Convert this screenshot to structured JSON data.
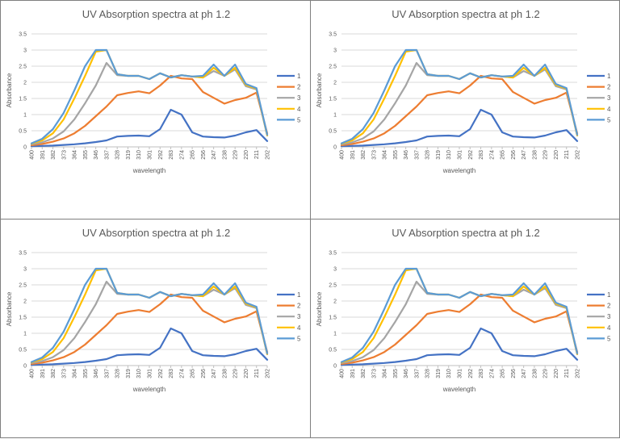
{
  "chart_data": [
    {
      "type": "line",
      "title": "UV Absorption spectra at ph 1.2",
      "xlabel": "wavelength",
      "ylabel": "Absorbance",
      "ylim": [
        0,
        3.5
      ],
      "yticks": [
        "0",
        "0.5",
        "1",
        "1.5",
        "2",
        "2.5",
        "3",
        "3.5"
      ],
      "xticks": [
        "400",
        "391",
        "382",
        "373",
        "364",
        "355",
        "346",
        "337",
        "328",
        "319",
        "310",
        "301",
        "292",
        "283",
        "274",
        "265",
        "256",
        "247",
        "238",
        "229",
        "220",
        "211",
        "202"
      ],
      "series": [
        {
          "name": "1",
          "color": "#4472c4",
          "values": [
            0.02,
            0.03,
            0.04,
            0.06,
            0.08,
            0.11,
            0.15,
            0.2,
            0.32,
            0.34,
            0.35,
            0.33,
            0.55,
            1.15,
            1.0,
            0.45,
            0.32,
            0.3,
            0.29,
            0.35,
            0.45,
            0.52,
            0.18
          ]
        },
        {
          "name": "2",
          "color": "#ed7d31",
          "values": [
            0.05,
            0.09,
            0.16,
            0.26,
            0.42,
            0.65,
            0.95,
            1.25,
            1.6,
            1.67,
            1.72,
            1.66,
            1.9,
            2.2,
            2.12,
            2.1,
            1.7,
            1.52,
            1.34,
            1.45,
            1.52,
            1.68,
            0.42
          ]
        },
        {
          "name": "3",
          "color": "#a5a5a5",
          "values": [
            0.08,
            0.14,
            0.26,
            0.48,
            0.85,
            1.35,
            1.9,
            2.6,
            2.22,
            2.2,
            2.2,
            2.1,
            2.28,
            2.15,
            2.22,
            2.18,
            2.15,
            2.35,
            2.2,
            2.4,
            1.88,
            1.78,
            0.35
          ]
        },
        {
          "name": "4",
          "color": "#ffc000",
          "values": [
            0.1,
            0.2,
            0.42,
            0.85,
            1.5,
            2.2,
            2.95,
            3.0,
            2.25,
            2.2,
            2.2,
            2.1,
            2.28,
            2.15,
            2.22,
            2.18,
            2.15,
            2.45,
            2.2,
            2.45,
            1.92,
            1.8,
            0.36
          ]
        },
        {
          "name": "5",
          "color": "#5b9bd5",
          "values": [
            0.11,
            0.25,
            0.55,
            1.05,
            1.75,
            2.5,
            3.0,
            3.0,
            2.25,
            2.2,
            2.2,
            2.1,
            2.28,
            2.15,
            2.22,
            2.18,
            2.2,
            2.55,
            2.2,
            2.55,
            1.95,
            1.82,
            0.38
          ]
        }
      ]
    },
    {
      "type": "line",
      "title": "UV Absorption spectra at ph 1.2",
      "xlabel": "wavelength",
      "ylabel": "Absorbance",
      "ylim": [
        0,
        3.5
      ],
      "yticks": [
        "0",
        "0.5",
        "1",
        "1.5",
        "2",
        "2.5",
        "3",
        "3.5"
      ],
      "xticks": [
        "400",
        "391",
        "382",
        "373",
        "364",
        "355",
        "346",
        "337",
        "328",
        "319",
        "310",
        "301",
        "292",
        "283",
        "274",
        "265",
        "256",
        "247",
        "238",
        "229",
        "220",
        "211",
        "202"
      ],
      "series": [
        {
          "name": "1",
          "color": "#4472c4",
          "values": [
            0.02,
            0.03,
            0.04,
            0.06,
            0.08,
            0.11,
            0.15,
            0.2,
            0.32,
            0.34,
            0.35,
            0.33,
            0.55,
            1.15,
            1.0,
            0.45,
            0.32,
            0.3,
            0.29,
            0.35,
            0.45,
            0.52,
            0.18
          ]
        },
        {
          "name": "2",
          "color": "#ed7d31",
          "values": [
            0.05,
            0.09,
            0.16,
            0.26,
            0.42,
            0.65,
            0.95,
            1.25,
            1.6,
            1.67,
            1.72,
            1.66,
            1.9,
            2.2,
            2.12,
            2.1,
            1.7,
            1.52,
            1.34,
            1.45,
            1.52,
            1.68,
            0.42
          ]
        },
        {
          "name": "3",
          "color": "#a5a5a5",
          "values": [
            0.08,
            0.14,
            0.26,
            0.48,
            0.85,
            1.35,
            1.9,
            2.6,
            2.22,
            2.2,
            2.2,
            2.1,
            2.28,
            2.15,
            2.22,
            2.18,
            2.15,
            2.35,
            2.2,
            2.4,
            1.88,
            1.78,
            0.35
          ]
        },
        {
          "name": "4",
          "color": "#ffc000",
          "values": [
            0.1,
            0.2,
            0.42,
            0.85,
            1.5,
            2.2,
            2.95,
            3.0,
            2.25,
            2.2,
            2.2,
            2.1,
            2.28,
            2.15,
            2.22,
            2.18,
            2.15,
            2.45,
            2.2,
            2.45,
            1.92,
            1.8,
            0.36
          ]
        },
        {
          "name": "5",
          "color": "#5b9bd5",
          "values": [
            0.11,
            0.25,
            0.55,
            1.05,
            1.75,
            2.5,
            3.0,
            3.0,
            2.25,
            2.2,
            2.2,
            2.1,
            2.28,
            2.15,
            2.22,
            2.18,
            2.2,
            2.55,
            2.2,
            2.55,
            1.95,
            1.82,
            0.38
          ]
        }
      ]
    },
    {
      "type": "line",
      "title": "UV Absorption spectra at ph 1.2",
      "xlabel": "wavelength",
      "ylabel": "Absorbance",
      "ylim": [
        0,
        3.5
      ],
      "yticks": [
        "0",
        "0.5",
        "1",
        "1.5",
        "2",
        "2.5",
        "3",
        "3.5"
      ],
      "xticks": [
        "400",
        "391",
        "382",
        "373",
        "364",
        "355",
        "346",
        "337",
        "328",
        "319",
        "310",
        "301",
        "292",
        "283",
        "274",
        "265",
        "256",
        "247",
        "238",
        "229",
        "220",
        "211",
        "202"
      ],
      "series": [
        {
          "name": "1",
          "color": "#4472c4",
          "values": [
            0.02,
            0.03,
            0.04,
            0.06,
            0.08,
            0.11,
            0.15,
            0.2,
            0.32,
            0.34,
            0.35,
            0.33,
            0.55,
            1.15,
            1.0,
            0.45,
            0.32,
            0.3,
            0.29,
            0.35,
            0.45,
            0.52,
            0.18
          ]
        },
        {
          "name": "2",
          "color": "#ed7d31",
          "values": [
            0.05,
            0.09,
            0.16,
            0.26,
            0.42,
            0.65,
            0.95,
            1.25,
            1.6,
            1.67,
            1.72,
            1.66,
            1.9,
            2.2,
            2.12,
            2.1,
            1.7,
            1.52,
            1.34,
            1.45,
            1.52,
            1.68,
            0.42
          ]
        },
        {
          "name": "3",
          "color": "#a5a5a5",
          "values": [
            0.08,
            0.14,
            0.26,
            0.48,
            0.85,
            1.35,
            1.9,
            2.6,
            2.22,
            2.2,
            2.2,
            2.1,
            2.28,
            2.15,
            2.22,
            2.18,
            2.15,
            2.35,
            2.2,
            2.4,
            1.88,
            1.78,
            0.35
          ]
        },
        {
          "name": "4",
          "color": "#ffc000",
          "values": [
            0.1,
            0.2,
            0.42,
            0.85,
            1.5,
            2.2,
            2.95,
            3.0,
            2.25,
            2.2,
            2.2,
            2.1,
            2.28,
            2.15,
            2.22,
            2.18,
            2.15,
            2.45,
            2.2,
            2.45,
            1.92,
            1.8,
            0.36
          ]
        },
        {
          "name": "5",
          "color": "#5b9bd5",
          "values": [
            0.11,
            0.25,
            0.55,
            1.05,
            1.75,
            2.5,
            3.0,
            3.0,
            2.25,
            2.2,
            2.2,
            2.1,
            2.28,
            2.15,
            2.22,
            2.18,
            2.2,
            2.55,
            2.2,
            2.55,
            1.95,
            1.82,
            0.38
          ]
        }
      ]
    },
    {
      "type": "line",
      "title": "UV Absorption spectra at ph 1.2",
      "xlabel": "wavelength",
      "ylabel": "Absorbance",
      "ylim": [
        0,
        3.5
      ],
      "yticks": [
        "0",
        "0.5",
        "1",
        "1.5",
        "2",
        "2.5",
        "3",
        "3.5"
      ],
      "xticks": [
        "400",
        "391",
        "382",
        "373",
        "364",
        "355",
        "346",
        "337",
        "328",
        "319",
        "310",
        "301",
        "292",
        "283",
        "274",
        "265",
        "256",
        "247",
        "238",
        "229",
        "220",
        "211",
        "202"
      ],
      "series": [
        {
          "name": "1",
          "color": "#4472c4",
          "values": [
            0.02,
            0.03,
            0.04,
            0.06,
            0.08,
            0.11,
            0.15,
            0.2,
            0.32,
            0.34,
            0.35,
            0.33,
            0.55,
            1.15,
            1.0,
            0.45,
            0.32,
            0.3,
            0.29,
            0.35,
            0.45,
            0.52,
            0.18
          ]
        },
        {
          "name": "2",
          "color": "#ed7d31",
          "values": [
            0.05,
            0.09,
            0.16,
            0.26,
            0.42,
            0.65,
            0.95,
            1.25,
            1.6,
            1.67,
            1.72,
            1.66,
            1.9,
            2.2,
            2.12,
            2.1,
            1.7,
            1.52,
            1.34,
            1.45,
            1.52,
            1.68,
            0.42
          ]
        },
        {
          "name": "3",
          "color": "#a5a5a5",
          "values": [
            0.08,
            0.14,
            0.26,
            0.48,
            0.85,
            1.35,
            1.9,
            2.6,
            2.22,
            2.2,
            2.2,
            2.1,
            2.28,
            2.15,
            2.22,
            2.18,
            2.15,
            2.35,
            2.2,
            2.4,
            1.88,
            1.78,
            0.35
          ]
        },
        {
          "name": "4",
          "color": "#ffc000",
          "values": [
            0.1,
            0.2,
            0.42,
            0.85,
            1.5,
            2.2,
            2.95,
            3.0,
            2.25,
            2.2,
            2.2,
            2.1,
            2.28,
            2.15,
            2.22,
            2.18,
            2.15,
            2.45,
            2.2,
            2.45,
            1.92,
            1.8,
            0.36
          ]
        },
        {
          "name": "5",
          "color": "#5b9bd5",
          "values": [
            0.11,
            0.25,
            0.55,
            1.05,
            1.75,
            2.5,
            3.0,
            3.0,
            2.25,
            2.2,
            2.2,
            2.1,
            2.28,
            2.15,
            2.22,
            2.18,
            2.2,
            2.55,
            2.2,
            2.55,
            1.95,
            1.82,
            0.38
          ]
        }
      ]
    }
  ]
}
